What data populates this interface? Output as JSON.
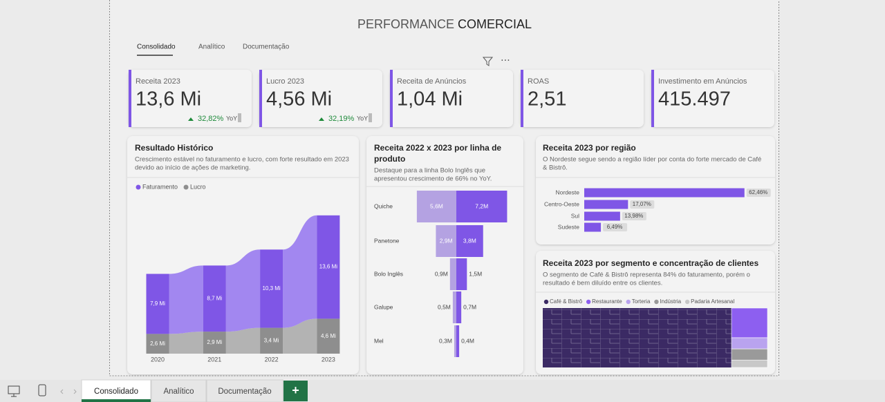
{
  "header": {
    "title_light": "PERFORMANCE",
    "title_bold": "COMERCIAL",
    "tabs": [
      "Consolidado",
      "Analítico",
      "Documentação"
    ]
  },
  "kpis": [
    {
      "label": "Receita 2023",
      "value": "13,6 Mi",
      "delta": "32,82%",
      "delta_note": "YoY"
    },
    {
      "label": "Lucro 2023",
      "value": "4,56 Mi",
      "delta": "32,19%",
      "delta_note": "YoY"
    },
    {
      "label": "Receita de Anúncios",
      "value": "1,04 Mi"
    },
    {
      "label": "ROAS",
      "value": "2,51"
    },
    {
      "label": "Investimento em Anúncios",
      "value": "415.497"
    }
  ],
  "historico": {
    "title": "Resultado Histórico",
    "subtitle": [
      "Crescimento estável no faturamento e lucro, com forte resultado em 2023",
      "devido ao início de ações de marketing."
    ],
    "chart_data": {
      "type": "ribbon",
      "categories": [
        "2020",
        "2021",
        "2022",
        "2023"
      ],
      "series": [
        {
          "name": "Faturamento",
          "color": "#7f56e6",
          "values": [
            7.9,
            8.7,
            10.3,
            13.6
          ],
          "value_labels": [
            "7,9 Mi",
            "8,7 Mi",
            "10,3 Mi",
            "13,6 Mi"
          ]
        },
        {
          "name": "Lucro",
          "color": "#8e8e8e",
          "values": [
            2.6,
            2.9,
            3.4,
            4.6
          ],
          "value_labels": [
            "2,6 Mi",
            "2,9 Mi",
            "3,4 Mi",
            "4,6 Mi"
          ]
        }
      ]
    }
  },
  "produto": {
    "title": [
      "Receita 2022 x 2023 por linha de",
      "produto"
    ],
    "subtitle": [
      "Destaque para a linha Bolo Inglês que",
      "apresentou crescimento de 66% no YoY."
    ],
    "chart_data": {
      "type": "butterfly",
      "categories": [
        "Quiche",
        "Panetone",
        "Bolo Inglês",
        "Galupe",
        "Mel"
      ],
      "series": [
        {
          "color": "#b4a2e2",
          "values": [
            5.6,
            2.9,
            0.9,
            0.5,
            0.3
          ],
          "value_labels": [
            "5,6M",
            "2,9M",
            "0,9M",
            "0,5M",
            "0,3M"
          ]
        },
        {
          "color": "#7f56e6",
          "values": [
            7.2,
            3.8,
            1.5,
            0.7,
            0.4
          ],
          "value_labels": [
            "7,2M",
            "3,8M",
            "1,5M",
            "0,7M",
            "0,4M"
          ]
        }
      ]
    }
  },
  "regiao": {
    "title": "Receita 2023 por região",
    "subtitle": [
      "O Nordeste segue sendo a região líder por conta do forte mercado de Café",
      "& Bistrô."
    ],
    "chart_data": {
      "type": "hbar",
      "categories": [
        "Nordeste",
        "Centro-Oeste",
        "Sul",
        "Sudeste"
      ],
      "values": [
        62.46,
        17.07,
        13.98,
        6.49
      ],
      "value_labels": [
        "62,46%",
        "17,07%",
        "13,98%",
        "6,49%"
      ],
      "color": "#7f56e6"
    }
  },
  "segmento": {
    "title": "Receita 2023 por segmento e concentração de clientes",
    "subtitle": [
      "O segmento de Café & Bistrô representa 84% do faturamento, porém o",
      "resultado é bem diluído entre os clientes."
    ],
    "chart_data": {
      "type": "treemap",
      "series": [
        {
          "name": "Café & Bistrô",
          "color": "#3b2a64",
          "values": [
            84
          ]
        },
        {
          "name": "Restaurante",
          "color": "#8d5ff0",
          "values": [
            8
          ]
        },
        {
          "name": "Torteria",
          "color": "#b9a3ef",
          "values": [
            3
          ]
        },
        {
          "name": "Indústria",
          "color": "#9a9a9a",
          "values": [
            3
          ]
        },
        {
          "name": "Padaria Artesanal",
          "color": "#c8c8c8",
          "values": [
            2
          ]
        }
      ]
    }
  },
  "footer": {
    "tabs": [
      "Consolidado",
      "Analítico",
      "Documentação"
    ],
    "add": "+"
  }
}
